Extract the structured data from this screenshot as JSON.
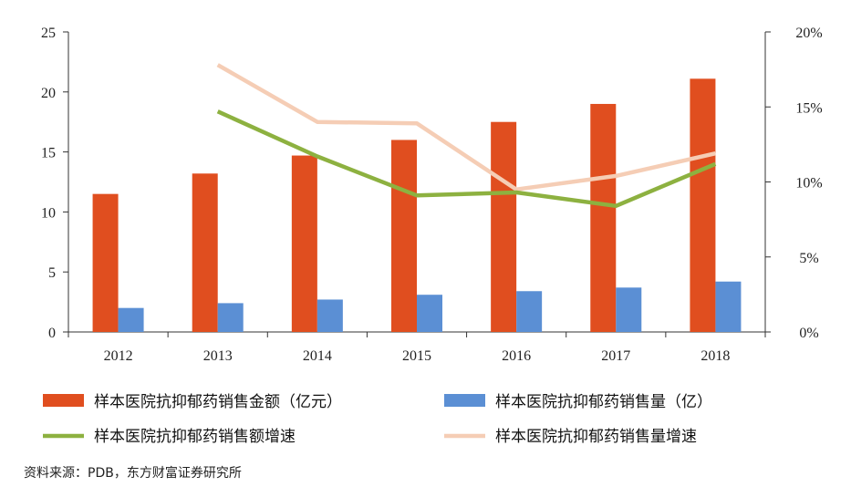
{
  "chart_data": {
    "type": "bar",
    "categories": [
      "2012",
      "2013",
      "2014",
      "2015",
      "2016",
      "2017",
      "2018"
    ],
    "series": [
      {
        "name": "样本医院抗抑郁药销售金额（亿元）",
        "kind": "bar",
        "axis": "left",
        "color": "#e04e1f",
        "values": [
          11.5,
          13.2,
          14.7,
          16.0,
          17.5,
          19.0,
          21.1
        ]
      },
      {
        "name": "样本医院抗抑郁药销售量（亿）",
        "kind": "bar",
        "axis": "left",
        "color": "#5b8fd4",
        "values": [
          2.0,
          2.4,
          2.7,
          3.1,
          3.4,
          3.7,
          4.2
        ]
      },
      {
        "name": "样本医院抗抑郁药销售额增速",
        "kind": "line",
        "axis": "right",
        "color": "#8db140",
        "values": [
          null,
          0.147,
          0.117,
          0.091,
          0.093,
          0.084,
          0.112
        ]
      },
      {
        "name": "样本医院抗抑郁药销售量增速",
        "kind": "line",
        "axis": "right",
        "color": "#f5cdb5",
        "values": [
          null,
          0.178,
          0.14,
          0.139,
          0.095,
          0.104,
          0.119
        ]
      }
    ],
    "ylim_left": [
      0,
      25
    ],
    "yticks_left": [
      "0",
      "5",
      "10",
      "15",
      "20",
      "25"
    ],
    "ylim_right": [
      0,
      0.2
    ],
    "yticks_right": [
      "0%",
      "5%",
      "10%",
      "15%",
      "20%"
    ],
    "grid": false,
    "legend_placement": "bottom"
  },
  "source_note": "资料来源：PDB，东方财富证券研究所"
}
